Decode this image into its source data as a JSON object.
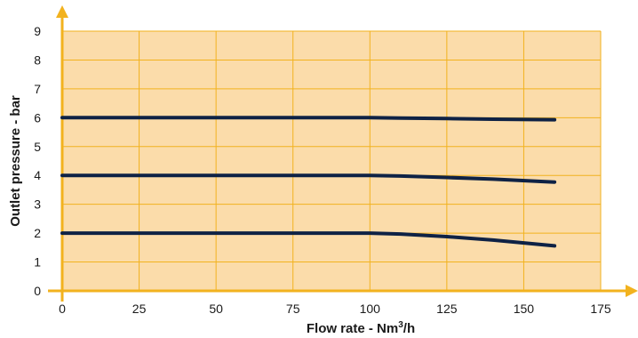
{
  "chart_data": {
    "type": "line",
    "title": "",
    "xlabel": "Flow rate - Nm",
    "xlabel_sup": "3",
    "xlabel_suffix": "/h",
    "ylabel": "Outlet pressure - bar",
    "xlim": [
      0,
      175
    ],
    "ylim": [
      0,
      9
    ],
    "xticks": [
      0,
      25,
      50,
      75,
      100,
      125,
      150,
      175
    ],
    "yticks": [
      0,
      1,
      2,
      3,
      4,
      5,
      6,
      7,
      8,
      9
    ],
    "grid": true,
    "legend": "none",
    "series": [
      {
        "x": [
          0,
          25,
          50,
          75,
          100,
          110,
          125,
          140,
          160
        ],
        "y": [
          6.0,
          6.0,
          6.0,
          6.0,
          6.0,
          5.99,
          5.97,
          5.95,
          5.93
        ]
      },
      {
        "x": [
          0,
          25,
          50,
          75,
          100,
          110,
          125,
          140,
          160
        ],
        "y": [
          4.0,
          4.0,
          4.0,
          4.0,
          4.0,
          3.98,
          3.93,
          3.87,
          3.77
        ]
      },
      {
        "x": [
          0,
          25,
          50,
          75,
          100,
          110,
          125,
          140,
          160
        ],
        "y": [
          2.0,
          2.0,
          2.0,
          2.0,
          2.0,
          1.97,
          1.88,
          1.76,
          1.56
        ]
      }
    ],
    "colors": {
      "plot_background": "#fbdcaa",
      "grid": "#f2b21e",
      "axis": "#f2b21e",
      "series": "#0e2245"
    }
  }
}
